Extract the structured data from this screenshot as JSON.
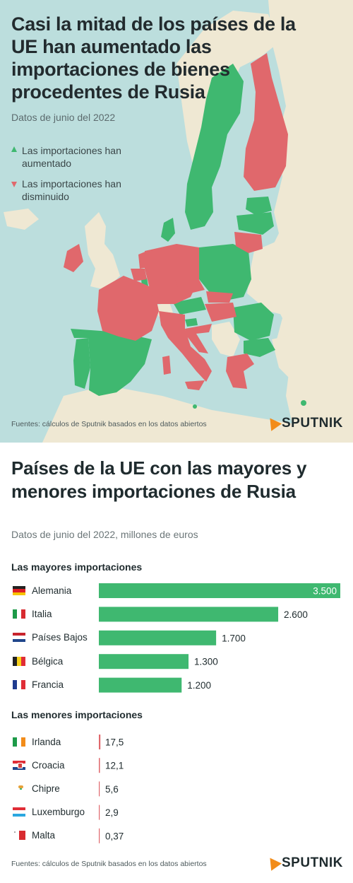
{
  "map": {
    "title": "Casi la mitad de los países de la UE han aumentado las importaciones de bienes procedentes de Rusia",
    "subtitle": "Datos de junio del 2022",
    "legend": {
      "increased": "Las importaciones han aumentado",
      "decreased": "Las importaciones han disminuido"
    },
    "sources": "Fuentes: cálculos de Sputnik basados en los datos abiertos",
    "brand": "SPUTNIK",
    "colors": {
      "sea": "#bcdedd",
      "land": "#efe8d3",
      "increased": "#3fb870",
      "decreased": "#e0686c"
    }
  },
  "bars": {
    "title": "Países de la UE con las mayores y menores importaciones de Rusia",
    "subtitle": "Datos de junio del 2022, millones de euros",
    "largest_heading": "Las mayores importaciones",
    "smallest_heading": "Las menores importaciones",
    "sources": "Fuentes: cálculos de Sputnik basados en los datos abiertos",
    "brand": "SPUTNIK",
    "colors": {
      "largest": "#3fb870",
      "smallest": "#e0686c"
    },
    "largest_labels": [
      "3.500",
      "2.600",
      "1.700",
      "1.300",
      "1.200"
    ],
    "smallest_labels": [
      "17,5",
      "12,1",
      "5,6",
      "2,9",
      "0,37"
    ]
  },
  "chart_data": [
    {
      "type": "bar",
      "title": "Las mayores importaciones",
      "categories": [
        "Alemania",
        "Italia",
        "Países Bajos",
        "Bélgica",
        "Francia"
      ],
      "values": [
        3500,
        2600,
        1700,
        1300,
        1200
      ]
    },
    {
      "type": "bar",
      "title": "Las menores importaciones",
      "categories": [
        "Irlanda",
        "Croacia",
        "Chipre",
        "Luxemburgo",
        "Malta"
      ],
      "values": [
        17.5,
        12.1,
        5.6,
        2.9,
        0.37
      ]
    }
  ]
}
